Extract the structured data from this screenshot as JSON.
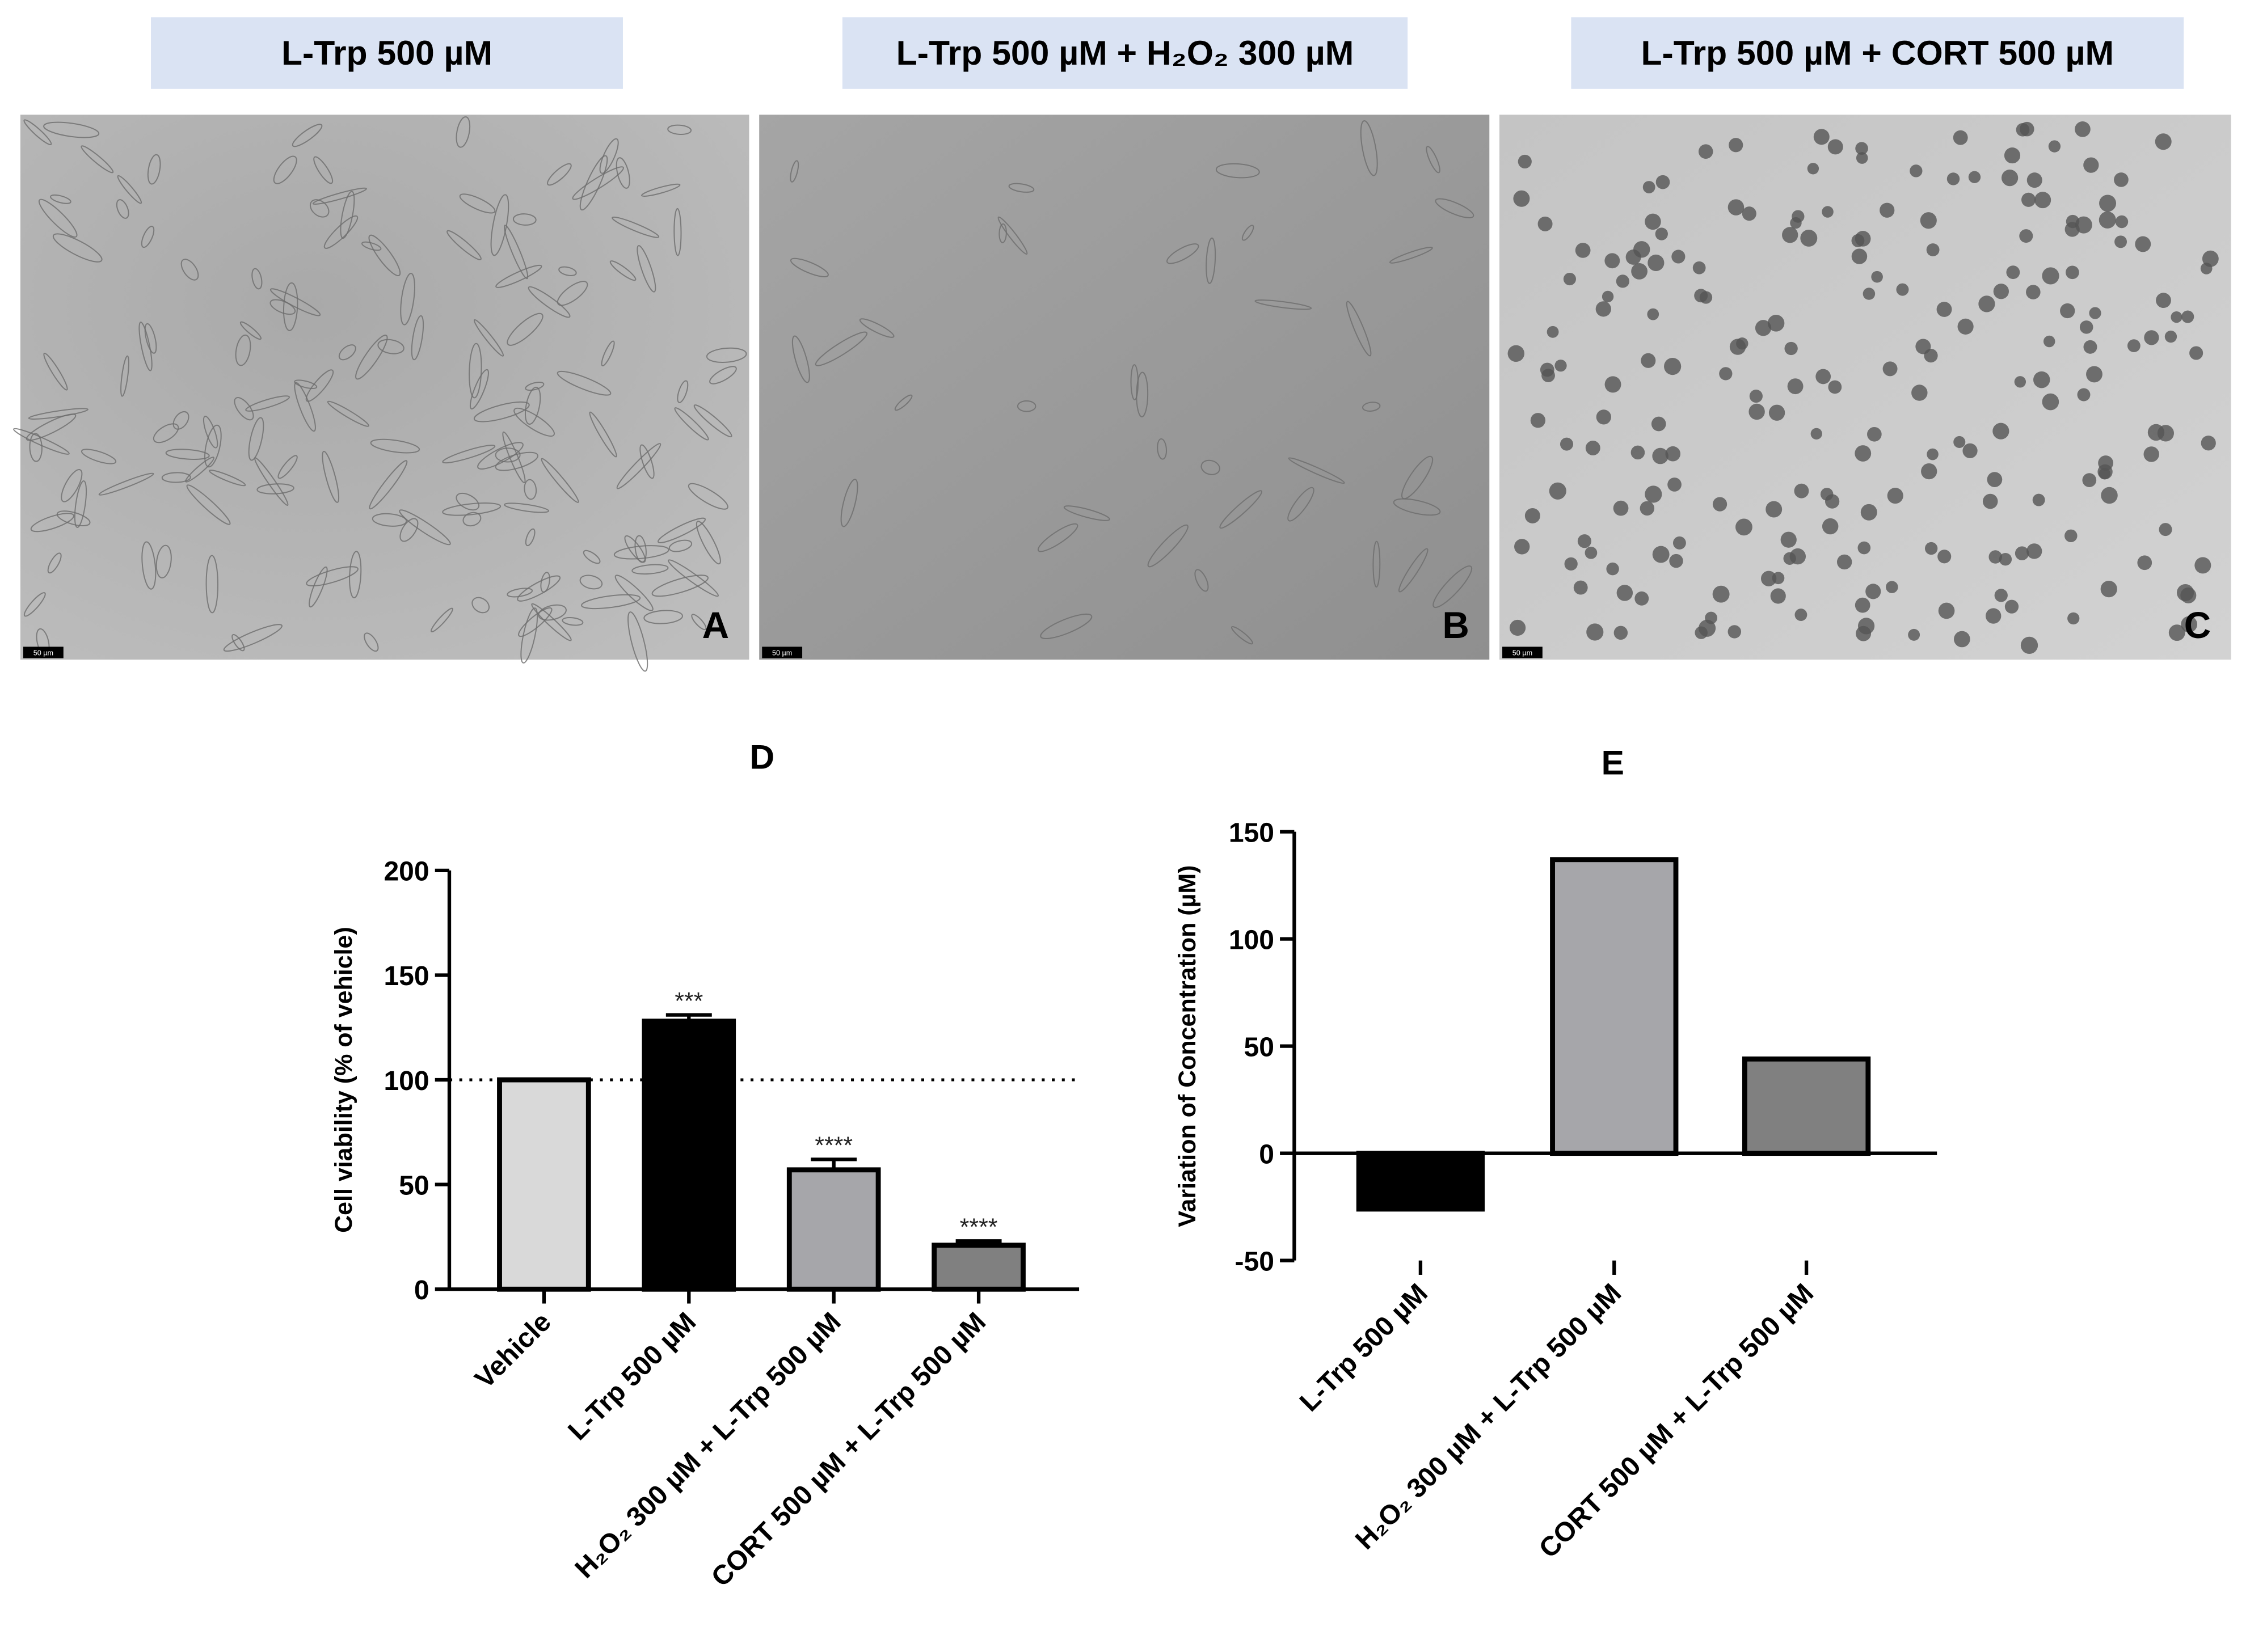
{
  "panels": [
    {
      "header": "L-Trp 500 µM",
      "letter": "A",
      "scale_bar": "50 µm"
    },
    {
      "header": "L-Trp 500 µM + H₂O₂ 300 µM",
      "letter": "B",
      "scale_bar": "50 µm"
    },
    {
      "header": "L-Trp  500 µM + CORT 500 µM",
      "letter": "C",
      "scale_bar": "50 µm"
    }
  ],
  "chart_data": [
    {
      "type": "bar",
      "title": "D",
      "ylabel": "Cell viability (% of vehicle)",
      "categories": [
        "Vehicle",
        "L-Trp 500 µM",
        "H₂O₂ 300 µM + L-Trp 500 µM",
        "CORT 500 µM + L-Trp 500 µM"
      ],
      "values": [
        100,
        128,
        57,
        21
      ],
      "errors": [
        null,
        3,
        5,
        2
      ],
      "value_annotations": [
        null,
        "***",
        "****",
        "****"
      ],
      "colors": [
        "#d9d9d9",
        "#000000",
        "#a6a6aa",
        "#808080"
      ],
      "reference_line": 100,
      "ylim": [
        0,
        200
      ],
      "yticks": [
        0,
        50,
        100,
        150,
        200
      ]
    },
    {
      "type": "bar",
      "title": "E",
      "ylabel": "Variation of Concentration (µM)",
      "categories": [
        "L-Trp 500 µM",
        "H₂O₂ 300 µM + L-Trp 500 µM",
        "CORT 500 µM + L-Trp 500 µM"
      ],
      "values": [
        -26,
        137,
        44
      ],
      "colors": [
        "#000000",
        "#a6a6aa",
        "#808080"
      ],
      "ylim": [
        -50,
        150
      ],
      "yticks": [
        -50,
        0,
        50,
        100,
        150
      ]
    }
  ]
}
